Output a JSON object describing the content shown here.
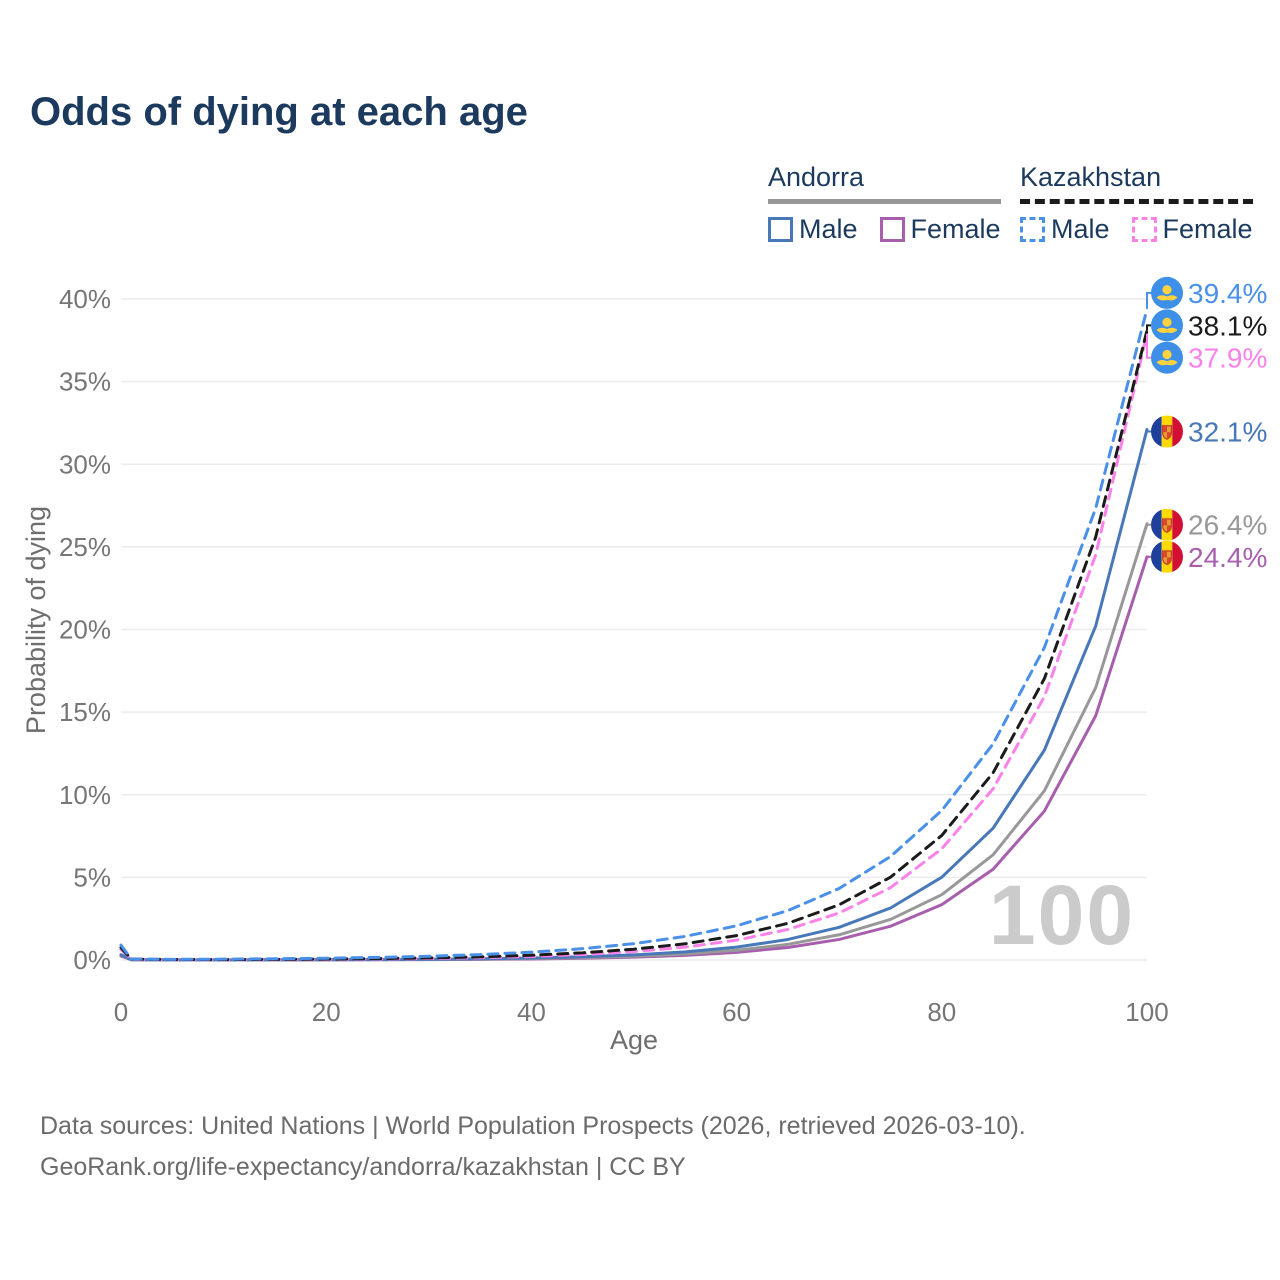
{
  "page": {
    "title": "Odds of dying at each age"
  },
  "legend": {
    "groups": [
      {
        "name": "Andorra",
        "line_style": "solid",
        "items": [
          {
            "label": "Male"
          },
          {
            "label": "Female"
          }
        ]
      },
      {
        "name": "Kazakhstan",
        "line_style": "dashed",
        "items": [
          {
            "label": "Male"
          },
          {
            "label": "Female"
          }
        ]
      }
    ]
  },
  "footer": {
    "line1": "Data sources: United Nations | World Population Prospects (2026, retrieved 2026-03-10).",
    "line2": "GeoRank.org/life-expectancy/andorra/kazakhstan | CC BY"
  },
  "chart_data": {
    "type": "line",
    "title": "Odds of dying at each age",
    "xlabel": "Age",
    "ylabel": "Probability of dying",
    "watermark": "100",
    "xlim": [
      0,
      100
    ],
    "ylim_pct": [
      0,
      40.5
    ],
    "grid": "horizontal",
    "legend_position": "top-right",
    "x_ticks": [
      {
        "value": 0,
        "label": "0"
      },
      {
        "value": 20,
        "label": "20"
      },
      {
        "value": 40,
        "label": "40"
      },
      {
        "value": 60,
        "label": "60"
      },
      {
        "value": 80,
        "label": "80"
      },
      {
        "value": 100,
        "label": "100"
      }
    ],
    "y_ticks": [
      {
        "value": 0,
        "label": "0%"
      },
      {
        "value": 5,
        "label": "5%"
      },
      {
        "value": 10,
        "label": "10%"
      },
      {
        "value": 15,
        "label": "15%"
      },
      {
        "value": 20,
        "label": "20%"
      },
      {
        "value": 25,
        "label": "25%"
      },
      {
        "value": 30,
        "label": "30%"
      },
      {
        "value": 35,
        "label": "35%"
      },
      {
        "value": 40,
        "label": "40%"
      }
    ],
    "ages": [
      0,
      1,
      5,
      10,
      15,
      20,
      25,
      30,
      35,
      40,
      45,
      50,
      55,
      60,
      65,
      70,
      75,
      80,
      85,
      90,
      95,
      100
    ],
    "series": [
      {
        "id": "kazakhstan-male",
        "country": "Kazakhstan",
        "sex": "Male",
        "line": "dashed",
        "color": "#4a90e8",
        "flag": "kz",
        "end_label": "39.4%",
        "end_value_pct": 39.4,
        "label_dy": -16,
        "values_pct": [
          0.9,
          0.06,
          0.04,
          0.05,
          0.075,
          0.108,
          0.157,
          0.227,
          0.328,
          0.474,
          0.685,
          0.99,
          1.43,
          2.07,
          2.99,
          4.33,
          6.26,
          9.05,
          13.08,
          18.91,
          27.34,
          39.4
        ]
      },
      {
        "id": "kazakhstan-both",
        "country": "Kazakhstan",
        "sex": "Both",
        "line": "dashed",
        "color": "#1b1b1b",
        "flag": "kz",
        "end_label": "38.1%",
        "end_value_pct": 38.1,
        "label_dy": -5,
        "values_pct": [
          0.75,
          0.05,
          0.03,
          0.025,
          0.038,
          0.057,
          0.086,
          0.128,
          0.193,
          0.29,
          0.435,
          0.654,
          0.983,
          1.477,
          2.22,
          3.34,
          5.01,
          7.54,
          11.33,
          17.03,
          25.6,
          38.1
        ]
      },
      {
        "id": "kazakhstan-female",
        "country": "Kazakhstan",
        "sex": "Female",
        "line": "dashed",
        "color": "#fb82e9",
        "flag": "kz",
        "end_label": "37.9%",
        "end_value_pct": 37.9,
        "label_dy": 24,
        "values_pct": [
          0.65,
          0.04,
          0.02,
          0.016,
          0.025,
          0.038,
          0.059,
          0.091,
          0.139,
          0.215,
          0.33,
          0.508,
          0.781,
          1.202,
          1.849,
          2.845,
          4.377,
          6.734,
          10.36,
          15.94,
          24.52,
          37.9
        ]
      },
      {
        "id": "andorra-male",
        "country": "Andorra",
        "sex": "Male",
        "line": "solid",
        "color": "#4878b8",
        "flag": "ad",
        "end_label": "32.1%",
        "end_value_pct": 32.1,
        "label_dy": 2,
        "values_pct": [
          0.32,
          0.02,
          0.01,
          0.007,
          0.012,
          0.019,
          0.03,
          0.048,
          0.076,
          0.121,
          0.193,
          0.308,
          0.49,
          0.78,
          1.242,
          1.977,
          3.147,
          5.01,
          7.975,
          12.7,
          20.21,
          32.1
        ]
      },
      {
        "id": "andorra-both",
        "country": "Andorra",
        "sex": "Both",
        "line": "solid",
        "color": "#989898",
        "flag": "ad",
        "end_label": "26.4%",
        "end_value_pct": 26.4,
        "label_dy": 1,
        "values_pct": [
          0.29,
          0.018,
          0.009,
          0.005,
          0.008,
          0.013,
          0.021,
          0.034,
          0.055,
          0.088,
          0.141,
          0.227,
          0.366,
          0.589,
          0.948,
          1.526,
          2.456,
          3.953,
          6.362,
          10.24,
          16.48,
          26.4
        ]
      },
      {
        "id": "andorra-female",
        "country": "Andorra",
        "sex": "Female",
        "line": "solid",
        "color": "#a75fad",
        "flag": "ad",
        "end_label": "24.4%",
        "end_value_pct": 24.4,
        "label_dy": 0,
        "values_pct": [
          0.24,
          0.015,
          0.007,
          0.003,
          0.005,
          0.009,
          0.015,
          0.024,
          0.039,
          0.064,
          0.105,
          0.172,
          0.282,
          0.463,
          0.759,
          1.245,
          2.042,
          3.35,
          5.494,
          9.011,
          14.78,
          24.4
        ]
      }
    ]
  }
}
